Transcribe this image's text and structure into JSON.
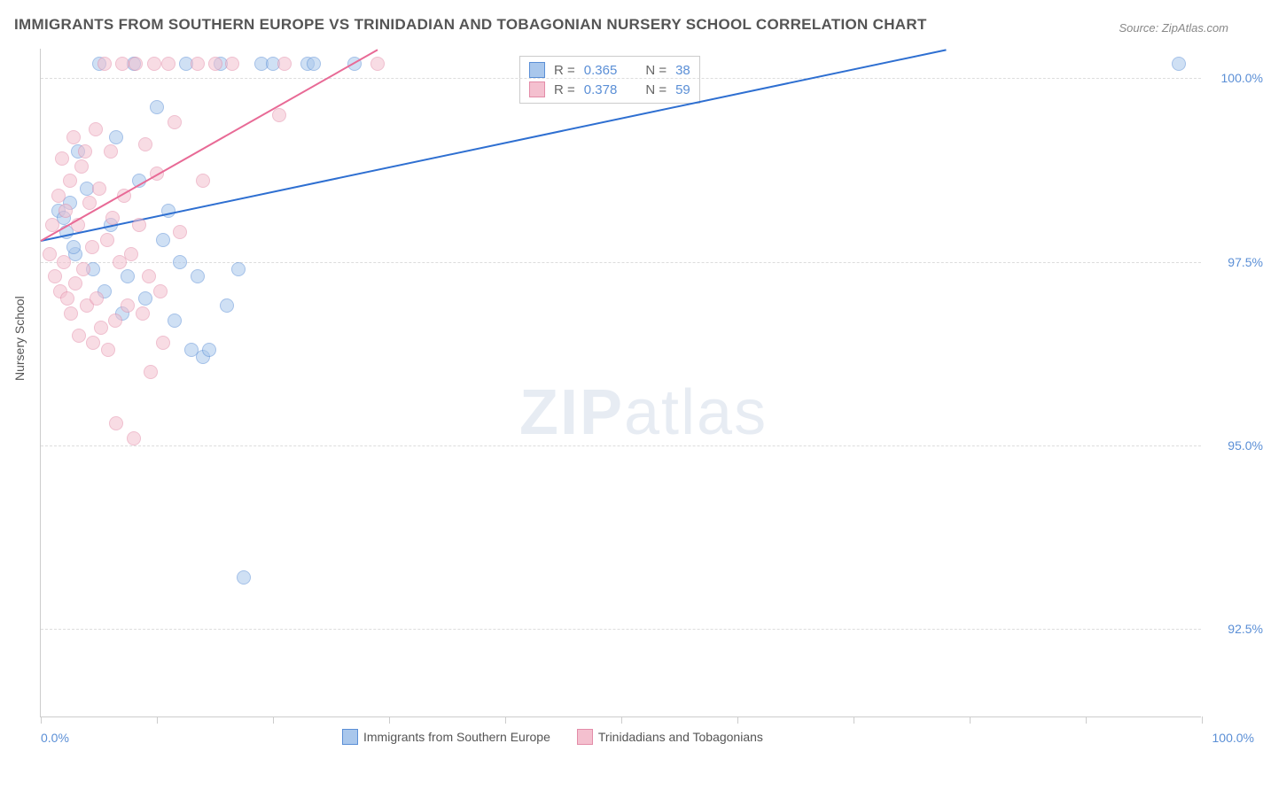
{
  "title": "IMMIGRANTS FROM SOUTHERN EUROPE VS TRINIDADIAN AND TOBAGONIAN NURSERY SCHOOL CORRELATION CHART",
  "source": "Source: ZipAtlas.com",
  "watermark_bold": "ZIP",
  "watermark_light": "atlas",
  "ylabel": "Nursery School",
  "chart": {
    "type": "scatter",
    "background_color": "#ffffff",
    "grid_color": "#dddddd",
    "axis_color": "#cccccc",
    "tick_label_color": "#5b8fd6",
    "title_color": "#555555",
    "title_fontsize": 17,
    "label_fontsize": 14,
    "xlim": [
      0,
      100
    ],
    "ylim": [
      91.3,
      100.4
    ],
    "x_tick_positions": [
      0,
      10,
      20,
      30,
      40,
      50,
      60,
      70,
      80,
      90,
      100
    ],
    "x_tick_labels_shown": {
      "0": "0.0%",
      "100": "100.0%"
    },
    "y_ticks": [
      {
        "v": 92.5,
        "label": "92.5%"
      },
      {
        "v": 95.0,
        "label": "95.0%"
      },
      {
        "v": 97.5,
        "label": "97.5%"
      },
      {
        "v": 100.0,
        "label": "100.0%"
      }
    ],
    "marker_radius": 8,
    "marker_opacity": 0.55,
    "line_width": 2,
    "series": [
      {
        "name": "Immigrants from Southern Europe",
        "fill_color": "#a9c7ec",
        "stroke_color": "#5b8fd6",
        "line_color": "#2e6fd1",
        "r_value": "0.365",
        "n_value": "38",
        "trend": {
          "x1": 0,
          "y1": 97.8,
          "x2": 78,
          "y2": 100.4
        },
        "points": [
          [
            1.5,
            98.2
          ],
          [
            2.0,
            98.1
          ],
          [
            2.2,
            97.9
          ],
          [
            2.5,
            98.3
          ],
          [
            3.0,
            97.6
          ],
          [
            3.2,
            99.0
          ],
          [
            4.0,
            98.5
          ],
          [
            4.5,
            97.4
          ],
          [
            5.0,
            100.2
          ],
          [
            5.5,
            97.1
          ],
          [
            6.0,
            98.0
          ],
          [
            6.5,
            99.2
          ],
          [
            7.0,
            96.8
          ],
          [
            7.5,
            97.3
          ],
          [
            8.0,
            100.2
          ],
          [
            8.5,
            98.6
          ],
          [
            9.0,
            97.0
          ],
          [
            10.0,
            99.6
          ],
          [
            10.5,
            97.8
          ],
          [
            11.0,
            98.2
          ],
          [
            11.5,
            96.7
          ],
          [
            12.0,
            97.5
          ],
          [
            12.5,
            100.2
          ],
          [
            13.0,
            96.3
          ],
          [
            13.5,
            97.3
          ],
          [
            14.0,
            96.2
          ],
          [
            14.5,
            96.3
          ],
          [
            15.5,
            100.2
          ],
          [
            16.0,
            96.9
          ],
          [
            17.0,
            97.4
          ],
          [
            17.5,
            93.2
          ],
          [
            19.0,
            100.2
          ],
          [
            20.0,
            100.2
          ],
          [
            23.0,
            100.2
          ],
          [
            23.5,
            100.2
          ],
          [
            27.0,
            100.2
          ],
          [
            98.0,
            100.2
          ],
          [
            2.8,
            97.7
          ]
        ]
      },
      {
        "name": "Trinidadians and Tobagonians",
        "fill_color": "#f4c0cf",
        "stroke_color": "#e38ca8",
        "line_color": "#e86a96",
        "r_value": "0.378",
        "n_value": "59",
        "trend": {
          "x1": 0,
          "y1": 97.8,
          "x2": 29,
          "y2": 100.4
        },
        "points": [
          [
            0.8,
            97.6
          ],
          [
            1.0,
            98.0
          ],
          [
            1.2,
            97.3
          ],
          [
            1.5,
            98.4
          ],
          [
            1.7,
            97.1
          ],
          [
            1.8,
            98.9
          ],
          [
            2.0,
            97.5
          ],
          [
            2.1,
            98.2
          ],
          [
            2.3,
            97.0
          ],
          [
            2.5,
            98.6
          ],
          [
            2.6,
            96.8
          ],
          [
            2.8,
            99.2
          ],
          [
            3.0,
            97.2
          ],
          [
            3.2,
            98.0
          ],
          [
            3.3,
            96.5
          ],
          [
            3.5,
            98.8
          ],
          [
            3.7,
            97.4
          ],
          [
            3.8,
            99.0
          ],
          [
            4.0,
            96.9
          ],
          [
            4.2,
            98.3
          ],
          [
            4.4,
            97.7
          ],
          [
            4.5,
            96.4
          ],
          [
            4.7,
            99.3
          ],
          [
            4.8,
            97.0
          ],
          [
            5.0,
            98.5
          ],
          [
            5.2,
            96.6
          ],
          [
            5.5,
            100.2
          ],
          [
            5.7,
            97.8
          ],
          [
            5.8,
            96.3
          ],
          [
            6.0,
            99.0
          ],
          [
            6.2,
            98.1
          ],
          [
            6.4,
            96.7
          ],
          [
            6.5,
            95.3
          ],
          [
            6.8,
            97.5
          ],
          [
            7.0,
            100.2
          ],
          [
            7.2,
            98.4
          ],
          [
            7.5,
            96.9
          ],
          [
            7.8,
            97.6
          ],
          [
            8.0,
            95.1
          ],
          [
            8.2,
            100.2
          ],
          [
            8.5,
            98.0
          ],
          [
            8.8,
            96.8
          ],
          [
            9.0,
            99.1
          ],
          [
            9.3,
            97.3
          ],
          [
            9.5,
            96.0
          ],
          [
            9.8,
            100.2
          ],
          [
            10.0,
            98.7
          ],
          [
            10.3,
            97.1
          ],
          [
            10.5,
            96.4
          ],
          [
            11.0,
            100.2
          ],
          [
            11.5,
            99.4
          ],
          [
            12.0,
            97.9
          ],
          [
            13.5,
            100.2
          ],
          [
            14.0,
            98.6
          ],
          [
            15.0,
            100.2
          ],
          [
            16.5,
            100.2
          ],
          [
            20.5,
            99.5
          ],
          [
            21.0,
            100.2
          ],
          [
            29.0,
            100.2
          ]
        ]
      }
    ]
  },
  "bottom_legend": {
    "items": [
      {
        "color_fill": "#a9c7ec",
        "color_stroke": "#5b8fd6",
        "label": "Immigrants from Southern Europe"
      },
      {
        "color_fill": "#f4c0cf",
        "color_stroke": "#e38ca8",
        "label": "Trinidadians and Tobagonians"
      }
    ]
  }
}
